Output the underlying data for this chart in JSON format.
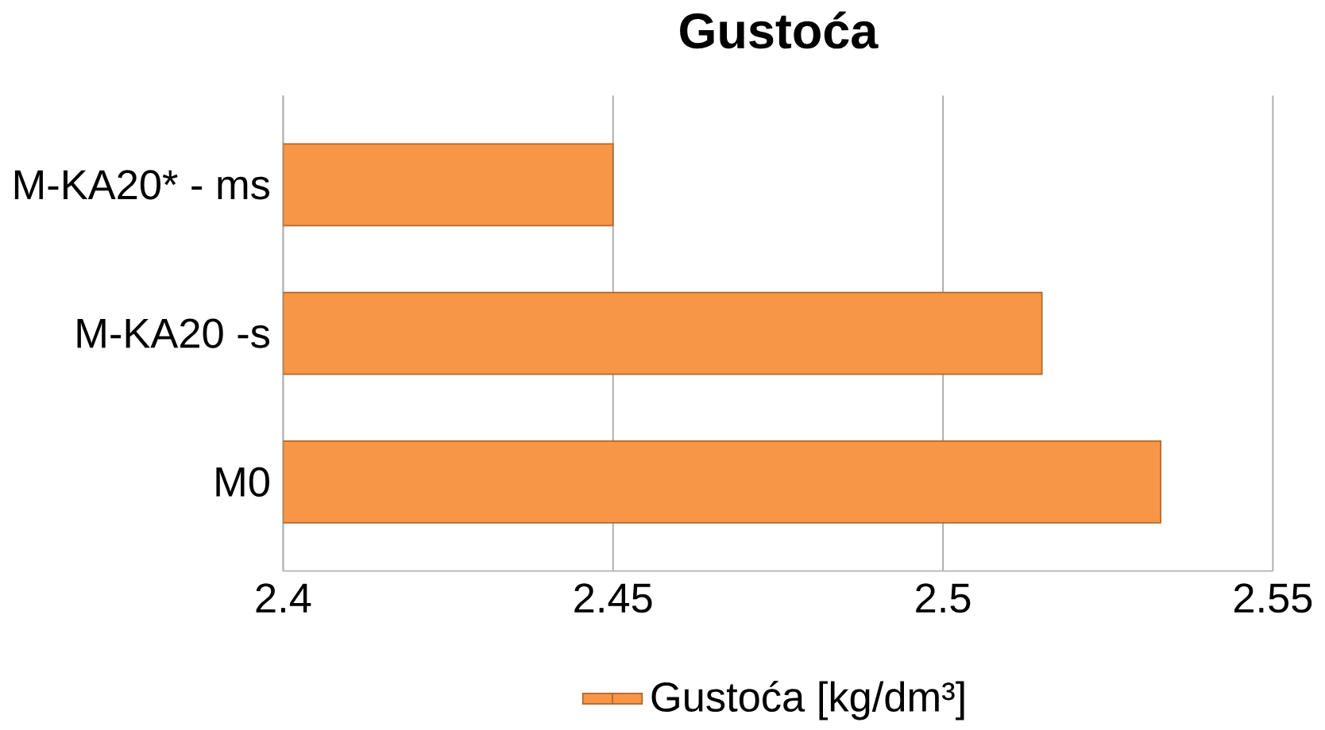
{
  "chart_data": {
    "type": "bar",
    "orientation": "horizontal",
    "title": "Gustoća",
    "categories": [
      "M-KA20* - ms",
      "M-KA20 -s",
      "M0"
    ],
    "series": [
      {
        "name": "Gustoća [kg/dm³]",
        "color": "#f79646",
        "values": [
          2.45,
          2.515,
          2.533
        ]
      }
    ],
    "xlim": [
      2.4,
      2.55
    ],
    "xticks": [
      2.4,
      2.45,
      2.5,
      2.55
    ],
    "grid": "x",
    "legend": "bottom"
  }
}
